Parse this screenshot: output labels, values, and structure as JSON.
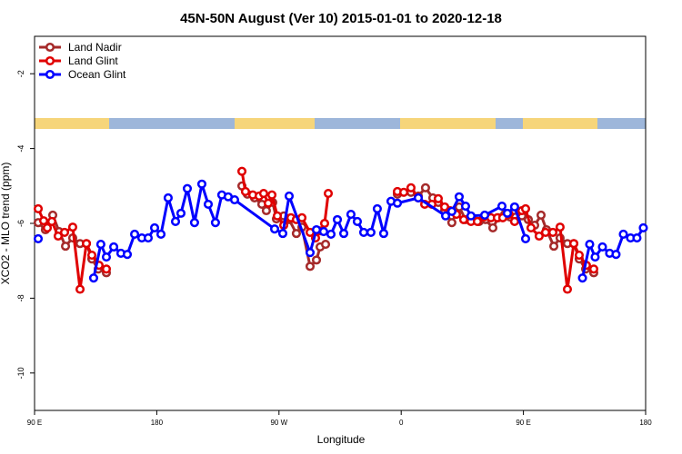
{
  "chart_data": {
    "type": "line",
    "title": "45N-50N August (Ver 10)   2015-01-01 to 2020-12-18",
    "x_label": "Longitude",
    "y_label": "XCO2 - MLO trend (ppm)",
    "xlim": [
      90,
      540
    ],
    "xticks": [
      {
        "value": 90,
        "label": "90 E"
      },
      {
        "value": 180,
        "label": "180"
      },
      {
        "value": 270,
        "label": "90 W"
      },
      {
        "value": 360,
        "label": "0"
      },
      {
        "value": 450,
        "label": "90 E"
      },
      {
        "value": 540,
        "label": "180"
      }
    ],
    "ylim": [
      -11,
      -1
    ],
    "yticks": [
      -10,
      -8,
      -6,
      -4,
      -2
    ],
    "grid": false,
    "legend": "top-left",
    "series": [
      {
        "name": "Land Nadir",
        "color": "#a52a2a",
        "x": [
          92.7,
          98,
          103.4,
          108.1,
          112.8,
          118.1,
          123.5,
          128.2,
          132.2,
          136.9,
          142.9,
          null,
          242.7,
          246.7,
          252,
          257.4,
          260.7,
          265.4,
          268.1,
          273.5,
          277.5,
          282.8,
          286.9,
          292.9,
          297.6,
          300.3,
          304.3,
          null,
          357.2,
          367.2,
          372.6,
          377.9,
          383.3,
          387.3,
          392,
          397.3,
          402.7,
          407.4,
          412.7,
          417.4,
          422.1,
          427.5,
          431.5,
          436.2,
          440.2,
          444.2,
          448.9,
          453.6,
          458.3,
          463,
          467,
          472.4,
          477,
          482.4,
          487.1,
          491.1,
          495.8,
          501.8
        ],
        "values": [
          -5.98,
          -6.17,
          -5.78,
          -6.22,
          -6.61,
          -6.39,
          -6.54,
          -6.54,
          -6.95,
          -7.22,
          -7.32,
          null,
          -5,
          -5.22,
          -5.32,
          -5.49,
          -5.66,
          -5.44,
          -5.88,
          -5.8,
          -5.9,
          -6.27,
          -6.1,
          -7.15,
          -6.98,
          -6.63,
          -6.56,
          null,
          -5.22,
          -5.17,
          -5.27,
          -5.05,
          -5.32,
          -5.44,
          -5.66,
          -5.98,
          -5.56,
          -5.9,
          -5.9,
          -5.95,
          -5.9,
          -6.12,
          -5.85,
          -5.76,
          -5.83,
          -5.83,
          -5.8,
          -5.9,
          -6.05,
          -5.78,
          -6.17,
          -6.61,
          -6.39,
          -6.54,
          -6.54,
          -6.95,
          -7.22,
          -7.32
        ]
      },
      {
        "name": "Land Glint",
        "color": "#e00000",
        "x": [
          92.7,
          96.7,
          99.4,
          102.7,
          107.4,
          112.1,
          118.1,
          123.5,
          128.2,
          132.2,
          137.5,
          142.9,
          null,
          242.7,
          245.3,
          250.7,
          255.4,
          258.7,
          262.1,
          264.8,
          268.8,
          273.5,
          278.8,
          282.8,
          286.9,
          292.9,
          296.9,
          300.3,
          303.6,
          306.3,
          null,
          357.2,
          361.9,
          367.2,
          372.6,
          377.3,
          382.6,
          387.3,
          392,
          396,
          400.7,
          406,
          411.4,
          416.1,
          420.8,
          426.1,
          430.8,
          434.8,
          439.5,
          443.5,
          448.9,
          451.6,
          455.6,
          461.6,
          466.3,
          471.7,
          477,
          482.4,
          487.1,
          491.1,
          496.4,
          501.8
        ],
        "values": [
          -5.61,
          -5.93,
          -6.12,
          -5.95,
          -6.34,
          -6.24,
          -6.1,
          -7.76,
          -6.54,
          -6.85,
          -7.12,
          -7.22,
          null,
          -4.61,
          -5.15,
          -5.24,
          -5.27,
          -5.2,
          -5.46,
          -5.24,
          -5.8,
          -6.05,
          -5.85,
          -5.9,
          -5.85,
          -6.24,
          -6.39,
          -6.2,
          -6,
          -5.2,
          null,
          -5.15,
          -5.17,
          -5.05,
          -5.32,
          -5.49,
          -5.49,
          -5.34,
          -5.56,
          -5.66,
          -5.76,
          -5.9,
          -5.95,
          -5.95,
          -5.83,
          -5.85,
          -5.85,
          -5.85,
          -5.76,
          -5.95,
          -5.66,
          -5.61,
          -6.12,
          -6.34,
          -6.24,
          -6.24,
          -6.1,
          -7.76,
          -6.54,
          -6.85,
          -7.12,
          -7.22
        ]
      },
      {
        "name": "Ocean Glint",
        "color": "#0000ff",
        "x": [
          92.7,
          null,
          133.5,
          138.8,
          142.9,
          148.3,
          153.6,
          158.3,
          163.7,
          169,
          173.7,
          178.4,
          183.1,
          188.4,
          193.8,
          197.8,
          202.5,
          207.8,
          213.2,
          217.9,
          223.2,
          227.9,
          232.6,
          237.3,
          266.8,
          272.8,
          277.5,
          292.9,
          297.6,
          302.9,
          308.3,
          313,
          317.7,
          323,
          327.7,
          332.4,
          337.7,
          342.4,
          347.1,
          352.5,
          357.2,
          372.6,
          392.7,
          397.3,
          402.7,
          407.4,
          411.4,
          421.5,
          434.2,
          438.2,
          443.5,
          451.6,
          null,
          493.5,
          498.8,
          502.8,
          508.2,
          513.5,
          518.2,
          523.6,
          528.9,
          533.6,
          538.3
        ],
        "values": [
          -6.41,
          null,
          -7.46,
          -6.56,
          -6.9,
          -6.63,
          -6.8,
          -6.83,
          -6.29,
          -6.39,
          -6.39,
          -6.12,
          -6.29,
          -5.32,
          -5.95,
          -5.73,
          -5.07,
          -5.98,
          -4.95,
          -5.49,
          -5.98,
          -5.24,
          -5.29,
          -5.37,
          -6.15,
          -6.27,
          -5.27,
          -6.78,
          -6.17,
          -6.22,
          -6.29,
          -5.9,
          -6.27,
          -5.76,
          -5.95,
          -6.24,
          -6.24,
          -5.61,
          -6.27,
          -5.41,
          -5.46,
          -5.32,
          -5.8,
          -5.68,
          -5.29,
          -5.54,
          -5.8,
          -5.78,
          -5.54,
          -5.73,
          -5.56,
          -6.41,
          null,
          -7.46,
          -6.56,
          -6.9,
          -6.63,
          -6.8,
          -6.83,
          -6.29,
          -6.39,
          -6.39,
          -6.12
        ]
      }
    ]
  }
}
